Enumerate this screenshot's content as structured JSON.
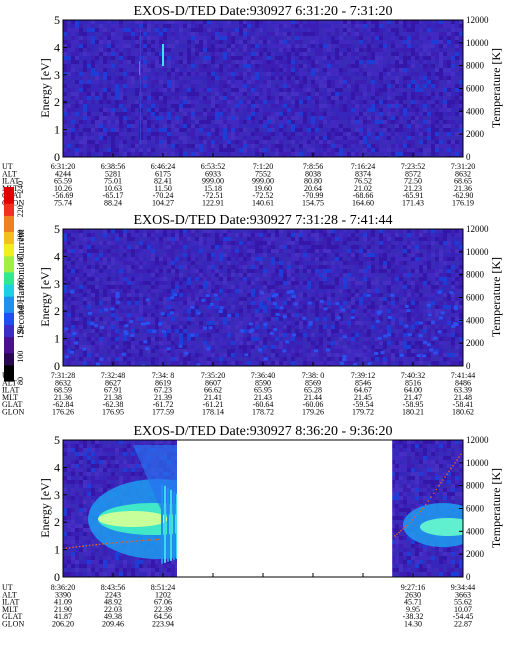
{
  "colorbar": {
    "label": "Second Harmonic Current",
    "ticks": [
      "80",
      "100",
      "120",
      "140",
      "160",
      "180",
      "200",
      "220",
      "240"
    ]
  },
  "chart_data": [
    {
      "type": "heatmap",
      "title": "EXOS-D/TED   Date:930927  6:31:20 - 7:31:20",
      "ylabel": "Energy [eV]",
      "ylabel_right": "Temperature [K]",
      "ylim": [
        0,
        5
      ],
      "ylim_right": [
        0,
        12000
      ],
      "yticks": [
        "0",
        "1",
        "2",
        "3",
        "4",
        "5"
      ],
      "yticks_right": [
        "0",
        "2000",
        "4000",
        "6000",
        "8000",
        "10000",
        "12000"
      ],
      "data_gaps": [],
      "band": null,
      "temperature_trace": [],
      "table": {
        "row_labels": [
          "UT",
          "ALT",
          "ILAT",
          "MLT",
          "GLAT",
          "GLON"
        ],
        "columns": [
          [
            "6:31:20",
            "4244",
            "65.59",
            "10.26",
            "-56.69",
            "75.74"
          ],
          [
            "6:38:56",
            "5281",
            "75.01",
            "10.63",
            "-65.17",
            "88.24"
          ],
          [
            "6:46:24",
            "6175",
            "82.41",
            "11.50",
            "-70.24",
            "104.27"
          ],
          [
            "6:53:52",
            "6933",
            "999.00",
            "15.18",
            "-72.51",
            "122.91"
          ],
          [
            "7:1:20",
            "7552",
            "999.00",
            "19.60",
            "-72.52",
            "140.61"
          ],
          [
            "7:8:56",
            "8038",
            "80.80",
            "20.64",
            "-70.99",
            "154.75"
          ],
          [
            "7:16:24",
            "8374",
            "76.52",
            "21.02",
            "-68.66",
            "164.60"
          ],
          [
            "7:23:52",
            "8572",
            "72.50",
            "21.23",
            "-65.91",
            "171.43"
          ],
          [
            "7:31:20",
            "8632",
            "68.65",
            "21.36",
            "-62.90",
            "176.19"
          ]
        ]
      }
    },
    {
      "type": "heatmap",
      "title": "EXOS-D/TED   Date:930927  7:31:28 - 7:41:44",
      "ylabel": "Energy [eV]",
      "ylabel_right": "Temperature [K]",
      "ylim": [
        0,
        5
      ],
      "ylim_right": [
        0,
        12000
      ],
      "yticks": [
        "0",
        "1",
        "2",
        "3",
        "4",
        "5"
      ],
      "yticks_right": [
        "0",
        "2000",
        "4000",
        "6000",
        "8000",
        "10000",
        "12000"
      ],
      "data_gaps": [],
      "band": null,
      "temperature_trace": [],
      "table": {
        "row_labels": [
          "UT",
          "ALT",
          "ILAT",
          "MLT",
          "GLAT",
          "GLON"
        ],
        "columns": [
          [
            "7:31:28",
            "8632",
            "68.59",
            "21.36",
            "-62.84",
            "176.26"
          ],
          [
            "7:32:48",
            "8627",
            "67.91",
            "21.38",
            "-62.38",
            "176.95"
          ],
          [
            "7:34: 8",
            "8619",
            "67.23",
            "21.39",
            "-61.72",
            "177.59"
          ],
          [
            "7:35:20",
            "8607",
            "66.62",
            "21.41",
            "-61.21",
            "178.14"
          ],
          [
            "7:36:40",
            "8590",
            "65.95",
            "21.43",
            "-60.64",
            "178.72"
          ],
          [
            "7:38: 0",
            "8569",
            "65.28",
            "21.44",
            "-60.06",
            "179.26"
          ],
          [
            "7:39:12",
            "8546",
            "64.67",
            "21.45",
            "-59.54",
            "179.72"
          ],
          [
            "7:40:32",
            "8516",
            "64.00",
            "21.47",
            "-58.95",
            "180.21"
          ],
          [
            "7:41:44",
            "8486",
            "63.39",
            "21.48",
            "-58.41",
            "180.62"
          ]
        ]
      }
    },
    {
      "type": "heatmap",
      "title": "EXOS-D/TED   Date:930927  8:36:20 - 9:36:20",
      "ylabel": "Energy [eV]",
      "ylabel_right": "Temperature [K]",
      "ylim": [
        0,
        5
      ],
      "ylim_right": [
        0,
        12000
      ],
      "yticks": [
        "0",
        "1",
        "2",
        "3",
        "4",
        "5"
      ],
      "yticks_right": [
        "0",
        "2000",
        "4000",
        "6000",
        "8000",
        "10000",
        "12000"
      ],
      "data_gaps": [
        [
          0.285,
          0.823
        ]
      ],
      "band": {
        "energy_eV": 2.1,
        "intensity_color": "#c8ff9a"
      },
      "temperature_trace": [
        [
          0.0,
          2500
        ],
        [
          0.05,
          2700
        ],
        [
          0.1,
          2900
        ],
        [
          0.15,
          3050
        ],
        [
          0.2,
          3200
        ],
        [
          0.24,
          3300
        ],
        [
          0.83,
          3600
        ],
        [
          0.86,
          4500
        ],
        [
          0.9,
          6000
        ],
        [
          0.94,
          8000
        ],
        [
          0.97,
          9500
        ],
        [
          1.0,
          11000
        ]
      ],
      "table": {
        "row_labels": [
          "UT",
          "ALT",
          "ILAT",
          "MLT",
          "GLAT",
          "GLON"
        ],
        "columns": [
          [
            "8:36:20",
            "3390",
            "41.09",
            "21.90",
            "41.87",
            "206.20"
          ],
          [
            "8:43:56",
            "2243",
            "48.92",
            "22.03",
            "49.38",
            "209.46"
          ],
          [
            "8:51:24",
            "1202",
            "67.06",
            "22.39",
            "64.56",
            "223.94"
          ],
          [
            "",
            "",
            "",
            "",
            "",
            ""
          ],
          [
            "",
            "",
            "",
            "",
            "",
            ""
          ],
          [
            "",
            "",
            "",
            "",
            "",
            ""
          ],
          [
            "",
            "",
            "",
            "",
            "",
            ""
          ],
          [
            "9:27:16",
            "2630",
            "45.71",
            "9.95",
            "-38.32",
            "14.30"
          ],
          [
            "9:34:44",
            "3663",
            "55.62",
            "10.07",
            "-54.45",
            "22.87"
          ]
        ]
      }
    }
  ]
}
